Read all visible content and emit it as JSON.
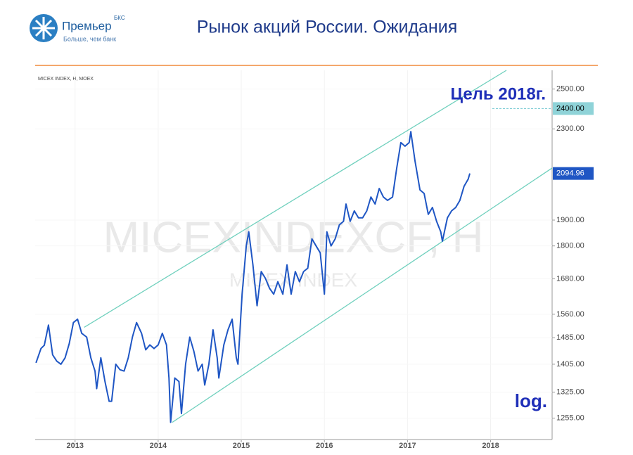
{
  "header": {
    "logo_name": "Премьер",
    "logo_badge": "БКС",
    "logo_slogan": "Больше, чем банк",
    "title": "Рынок акций России. Ожидания"
  },
  "chart_data": {
    "type": "line",
    "source": "MICEX INDEX, H, MOEX",
    "watermark": "MICEXINDEXCF, H",
    "watermark_subtitle": "MICEX INDEX",
    "scale_note": "log.",
    "log_scale": true,
    "grid": true,
    "color": "#1f56c4",
    "x": [
      2012.53,
      2012.59,
      2012.63,
      2012.68,
      2012.73,
      2012.78,
      2012.83,
      2012.88,
      2012.93,
      2012.98,
      2013.03,
      2013.08,
      2013.14,
      2013.19,
      2013.24,
      2013.26,
      2013.31,
      2013.36,
      2013.41,
      2013.44,
      2013.49,
      2013.54,
      2013.59,
      2013.64,
      2013.69,
      2013.74,
      2013.8,
      2013.85,
      2013.9,
      2013.95,
      2014.0,
      2014.05,
      2014.1,
      2014.13,
      2014.15,
      2014.2,
      2014.25,
      2014.28,
      2014.33,
      2014.38,
      2014.43,
      2014.48,
      2014.53,
      2014.56,
      2014.61,
      2014.66,
      2014.71,
      2014.73,
      2014.79,
      2014.84,
      2014.89,
      2014.94,
      2014.96,
      2015.01,
      2015.06,
      2015.09,
      2015.14,
      2015.19,
      2015.24,
      2015.29,
      2015.34,
      2015.39,
      2015.44,
      2015.5,
      2015.55,
      2015.6,
      2015.65,
      2015.7,
      2015.75,
      2015.8,
      2015.85,
      2015.9,
      2015.95,
      2016.0,
      2016.03,
      2016.08,
      2016.13,
      2016.18,
      2016.23,
      2016.26,
      2016.31,
      2016.36,
      2016.41,
      2016.46,
      2016.51,
      2016.56,
      2016.61,
      2016.66,
      2016.71,
      2016.76,
      2016.82,
      2016.87,
      2016.92,
      2016.97,
      2017.02,
      2017.04,
      2017.09,
      2017.15,
      2017.2,
      2017.25,
      2017.3,
      2017.35,
      2017.4,
      2017.42,
      2017.48,
      2017.53,
      2017.58,
      2017.63,
      2017.68,
      2017.73,
      2017.75
    ],
    "values": [
      1409,
      1452,
      1462,
      1525,
      1433,
      1414,
      1405,
      1424,
      1467,
      1533,
      1544,
      1499,
      1487,
      1424,
      1385,
      1335,
      1424,
      1355,
      1300,
      1300,
      1405,
      1389,
      1385,
      1424,
      1487,
      1533,
      1499,
      1448,
      1463,
      1452,
      1463,
      1499,
      1463,
      1365,
      1244,
      1365,
      1355,
      1267,
      1405,
      1487,
      1443,
      1385,
      1405,
      1345,
      1405,
      1510,
      1424,
      1365,
      1463,
      1510,
      1544,
      1424,
      1405,
      1627,
      1800,
      1854,
      1730,
      1588,
      1706,
      1682,
      1647,
      1627,
      1670,
      1627,
      1730,
      1627,
      1706,
      1670,
      1706,
      1718,
      1827,
      1800,
      1774,
      1627,
      1854,
      1800,
      1827,
      1881,
      1895,
      1965,
      1895,
      1937,
      1909,
      1909,
      1937,
      1994,
      1965,
      2030,
      1994,
      1980,
      1994,
      2118,
      2235,
      2218,
      2235,
      2287,
      2151,
      2024,
      2009,
      1923,
      1951,
      1895,
      1854,
      1818,
      1909,
      1937,
      1951,
      1980,
      2039,
      2070,
      2094.96
    ],
    "channels": [
      {
        "color": "#6fd0bd",
        "x": [
          2013.11,
          2018.19
        ],
        "values": [
          1518,
          2600
        ]
      },
      {
        "color": "#6fd0bd",
        "x": [
          2014.17,
          2018.74
        ],
        "values": [
          1244,
          2119
        ]
      }
    ],
    "target": {
      "label": "Цель 2018г.",
      "value": 2400,
      "value_label": "2400.00"
    },
    "current": {
      "value": 2094.96,
      "label": "2094.96"
    },
    "xlim": [
      2012.52,
      2018.74
    ],
    "xticks": [
      2013,
      2014,
      2015,
      2016,
      2017,
      2018
    ],
    "ylim": [
      1200,
      2600
    ],
    "yticks": [
      {
        "value": 1255,
        "label": "1255.00"
      },
      {
        "value": 1325,
        "label": "1325.00"
      },
      {
        "value": 1405,
        "label": "1405.00"
      },
      {
        "value": 1485,
        "label": "1485.00"
      },
      {
        "value": 1560,
        "label": "1560.00"
      },
      {
        "value": 1680,
        "label": "1680.00"
      },
      {
        "value": 1800,
        "label": "1800.00"
      },
      {
        "value": 1900,
        "label": "1900.00"
      },
      {
        "value": 2300,
        "label": "2300.00"
      },
      {
        "value": 2500,
        "label": "2500.00"
      }
    ]
  }
}
